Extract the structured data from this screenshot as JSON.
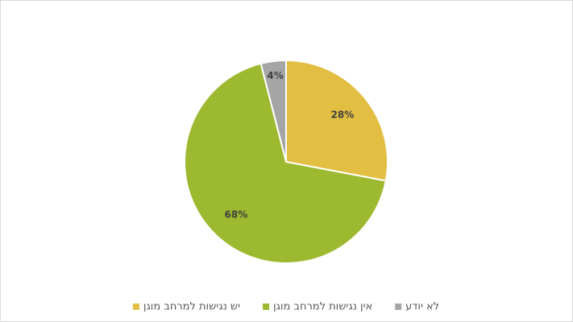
{
  "chart_data": {
    "type": "pie",
    "categories": [
      "יש נגישות למרחב מוגן",
      "אין נגישות למרחב מוגן",
      "לא יודע"
    ],
    "values": [
      28,
      68,
      4
    ],
    "value_labels": [
      "28%",
      "68%",
      "4%"
    ],
    "colors": [
      "#e2bf42",
      "#9db92f",
      "#a5a5a5"
    ],
    "legend": "bottom"
  }
}
